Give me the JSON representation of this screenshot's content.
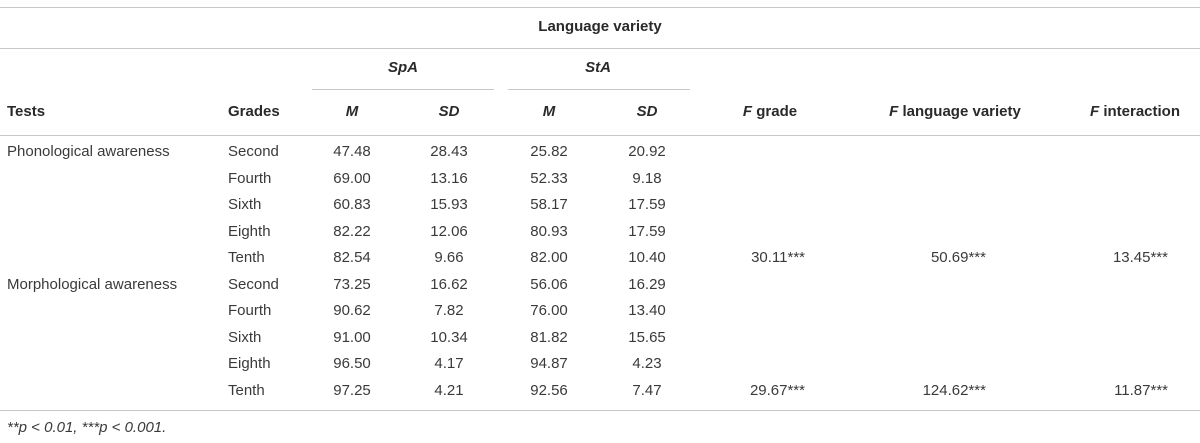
{
  "table": {
    "spanner": "Language variety",
    "groups": [
      "SpA",
      "StA"
    ],
    "subheads": [
      "M",
      "SD",
      "M",
      "SD"
    ],
    "columns": {
      "tests": "Tests",
      "grades": "Grades",
      "f_grade": {
        "symbol": "F",
        "label": "grade"
      },
      "f_language": {
        "symbol": "F",
        "label": "language variety"
      },
      "f_interaction": {
        "symbol": "F",
        "label": "interaction"
      }
    },
    "rows": [
      {
        "test": "Phonological awareness",
        "grade": "Second",
        "values": [
          "47.48",
          "28.43",
          "25.82",
          "20.92"
        ]
      },
      {
        "grade": "Fourth",
        "values": [
          "69.00",
          "13.16",
          "52.33",
          "9.18"
        ]
      },
      {
        "grade": "Sixth",
        "values": [
          "60.83",
          "15.93",
          "58.17",
          "17.59"
        ]
      },
      {
        "grade": "Eighth",
        "values": [
          "82.22",
          "12.06",
          "80.93",
          "17.59"
        ]
      },
      {
        "grade": "Tenth",
        "values": [
          "82.54",
          "9.66",
          "82.00",
          "10.40"
        ],
        "f_grade": "30.11***",
        "f_language": "50.69***",
        "f_interaction": "13.45***"
      },
      {
        "test": "Morphological awareness",
        "grade": "Second",
        "values": [
          "73.25",
          "16.62",
          "56.06",
          "16.29"
        ]
      },
      {
        "grade": "Fourth",
        "values": [
          "90.62",
          "7.82",
          "76.00",
          "13.40"
        ]
      },
      {
        "grade": "Sixth",
        "values": [
          "91.00",
          "10.34",
          "81.82",
          "15.65"
        ]
      },
      {
        "grade": "Eighth",
        "values": [
          "96.50",
          "4.17",
          "94.87",
          "4.23"
        ]
      },
      {
        "grade": "Tenth",
        "values": [
          "97.25",
          "4.21",
          "92.56",
          "7.47"
        ],
        "f_grade": "29.67***",
        "f_language": "124.62***",
        "f_interaction": "11.87***"
      }
    ],
    "footnote": "**p < 0.01, ***p < 0.001."
  }
}
